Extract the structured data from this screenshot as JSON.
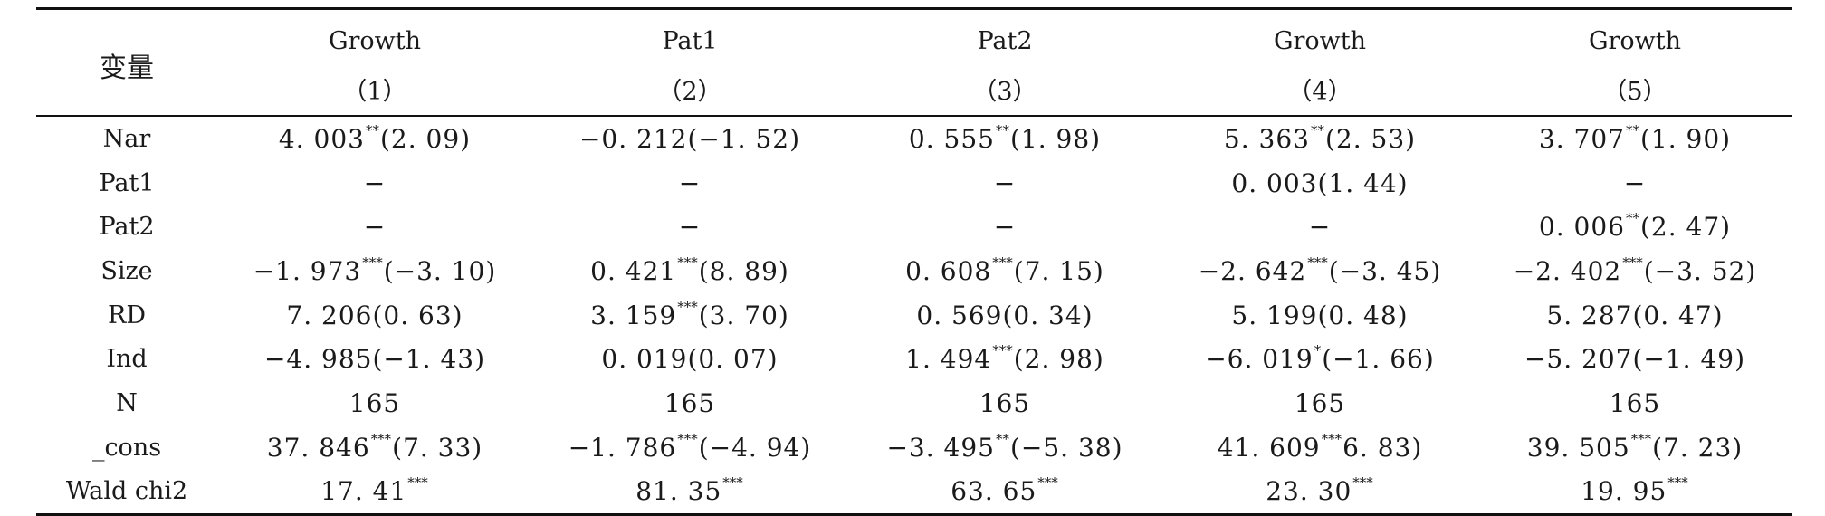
{
  "table": {
    "variable_header": "变量",
    "columns": [
      {
        "name": "Growth",
        "number": "（1）"
      },
      {
        "name": "Pat1",
        "number": "（2）"
      },
      {
        "name": "Pat2",
        "number": "（3）"
      },
      {
        "name": "Growth",
        "number": "（4）"
      },
      {
        "name": "Growth",
        "number": "（5）"
      }
    ],
    "rows": [
      {
        "label": "Nar",
        "cells": [
          {
            "coef": "4. 003",
            "stars": "**",
            "t": "(2. 09)"
          },
          {
            "coef": "−0. 212",
            "stars": "",
            "t": "(−1. 52)"
          },
          {
            "coef": "0. 555",
            "stars": "**",
            "t": "(1. 98)"
          },
          {
            "coef": "5. 363",
            "stars": "**",
            "t": "(2. 53)"
          },
          {
            "coef": "3. 707",
            "stars": "**",
            "t": "(1. 90)"
          }
        ]
      },
      {
        "label": "Pat1",
        "cells": [
          {
            "coef": "−",
            "stars": "",
            "t": ""
          },
          {
            "coef": "−",
            "stars": "",
            "t": ""
          },
          {
            "coef": "−",
            "stars": "",
            "t": ""
          },
          {
            "coef": "0. 003",
            "stars": "",
            "t": "(1. 44)"
          },
          {
            "coef": "−",
            "stars": "",
            "t": ""
          }
        ]
      },
      {
        "label": "Pat2",
        "cells": [
          {
            "coef": "−",
            "stars": "",
            "t": ""
          },
          {
            "coef": "−",
            "stars": "",
            "t": ""
          },
          {
            "coef": "−",
            "stars": "",
            "t": ""
          },
          {
            "coef": "−",
            "stars": "",
            "t": ""
          },
          {
            "coef": "0. 006",
            "stars": "**",
            "t": "(2. 47)"
          }
        ]
      },
      {
        "label": "Size",
        "cells": [
          {
            "coef": "−1. 973",
            "stars": "***",
            "t": "(−3. 10)"
          },
          {
            "coef": "0. 421",
            "stars": "***",
            "t": "(8. 89)"
          },
          {
            "coef": "0. 608",
            "stars": "***",
            "t": "(7. 15)"
          },
          {
            "coef": "−2. 642",
            "stars": "***",
            "t": "(−3. 45)"
          },
          {
            "coef": "−2. 402",
            "stars": "***",
            "t": "(−3. 52)"
          }
        ]
      },
      {
        "label": "RD",
        "cells": [
          {
            "coef": "7. 206",
            "stars": "",
            "t": "(0. 63)"
          },
          {
            "coef": "3. 159",
            "stars": "***",
            "t": "(3. 70)"
          },
          {
            "coef": "0. 569",
            "stars": "",
            "t": "(0. 34)"
          },
          {
            "coef": "5. 199",
            "stars": "",
            "t": "(0. 48)"
          },
          {
            "coef": "5. 287",
            "stars": "",
            "t": "(0. 47)"
          }
        ]
      },
      {
        "label": "Ind",
        "cells": [
          {
            "coef": "−4. 985",
            "stars": "",
            "t": "(−1. 43)"
          },
          {
            "coef": "0. 019",
            "stars": "",
            "t": "(0. 07)"
          },
          {
            "coef": "1. 494",
            "stars": "***",
            "t": "(2. 98)"
          },
          {
            "coef": "−6. 019",
            "stars": "*",
            "t": "(−1. 66)"
          },
          {
            "coef": "−5. 207",
            "stars": "",
            "t": "(−1. 49)"
          }
        ]
      },
      {
        "label": "N",
        "cells": [
          {
            "coef": "165",
            "stars": "",
            "t": ""
          },
          {
            "coef": "165",
            "stars": "",
            "t": ""
          },
          {
            "coef": "165",
            "stars": "",
            "t": ""
          },
          {
            "coef": "165",
            "stars": "",
            "t": ""
          },
          {
            "coef": "165",
            "stars": "",
            "t": ""
          }
        ]
      },
      {
        "label": "_cons",
        "cells": [
          {
            "coef": "37. 846",
            "stars": "***",
            "t": "(7. 33)"
          },
          {
            "coef": "−1. 786",
            "stars": "***",
            "t": "(−4. 94)"
          },
          {
            "coef": "−3. 495",
            "stars": "**",
            "t": "(−5. 38)"
          },
          {
            "coef": "41. 609",
            "stars": "***",
            "t": "6. 83)"
          },
          {
            "coef": "39. 505",
            "stars": "***",
            "t": "(7. 23)"
          }
        ]
      },
      {
        "label": "Wald chi2",
        "cells": [
          {
            "coef": "17. 41",
            "stars": "***",
            "t": ""
          },
          {
            "coef": "81. 35",
            "stars": "***",
            "t": ""
          },
          {
            "coef": "63. 65",
            "stars": "***",
            "t": ""
          },
          {
            "coef": "23. 30",
            "stars": "***",
            "t": ""
          },
          {
            "coef": "19. 95",
            "stars": "***",
            "t": ""
          }
        ]
      }
    ]
  }
}
